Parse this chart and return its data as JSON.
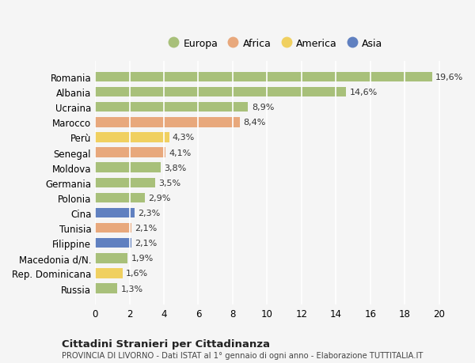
{
  "countries": [
    "Romania",
    "Albania",
    "Ucraina",
    "Marocco",
    "Perù",
    "Senegal",
    "Moldova",
    "Germania",
    "Polonia",
    "Cina",
    "Tunisia",
    "Filippine",
    "Macedonia d/N.",
    "Rep. Dominicana",
    "Russia"
  ],
  "values": [
    19.6,
    14.6,
    8.9,
    8.4,
    4.3,
    4.1,
    3.8,
    3.5,
    2.9,
    2.3,
    2.1,
    2.1,
    1.9,
    1.6,
    1.3
  ],
  "continents": [
    "Europa",
    "Europa",
    "Europa",
    "Africa",
    "America",
    "Africa",
    "Europa",
    "Europa",
    "Europa",
    "Asia",
    "Africa",
    "Asia",
    "Europa",
    "America",
    "Europa"
  ],
  "colors": {
    "Europa": "#a8c07a",
    "Africa": "#e8a87c",
    "America": "#f0d060",
    "Asia": "#6080c0"
  },
  "legend_order": [
    "Europa",
    "Africa",
    "America",
    "Asia"
  ],
  "xlim": [
    0,
    21
  ],
  "xticks": [
    0,
    2,
    4,
    6,
    8,
    10,
    12,
    14,
    16,
    18,
    20
  ],
  "title1": "Cittadini Stranieri per Cittadinanza",
  "title2": "PROVINCIA DI LIVORNO - Dati ISTAT al 1° gennaio di ogni anno - Elaborazione TUTTITALIA.IT",
  "bg_color": "#f5f5f5",
  "grid_color": "#ffffff",
  "bar_height": 0.65
}
